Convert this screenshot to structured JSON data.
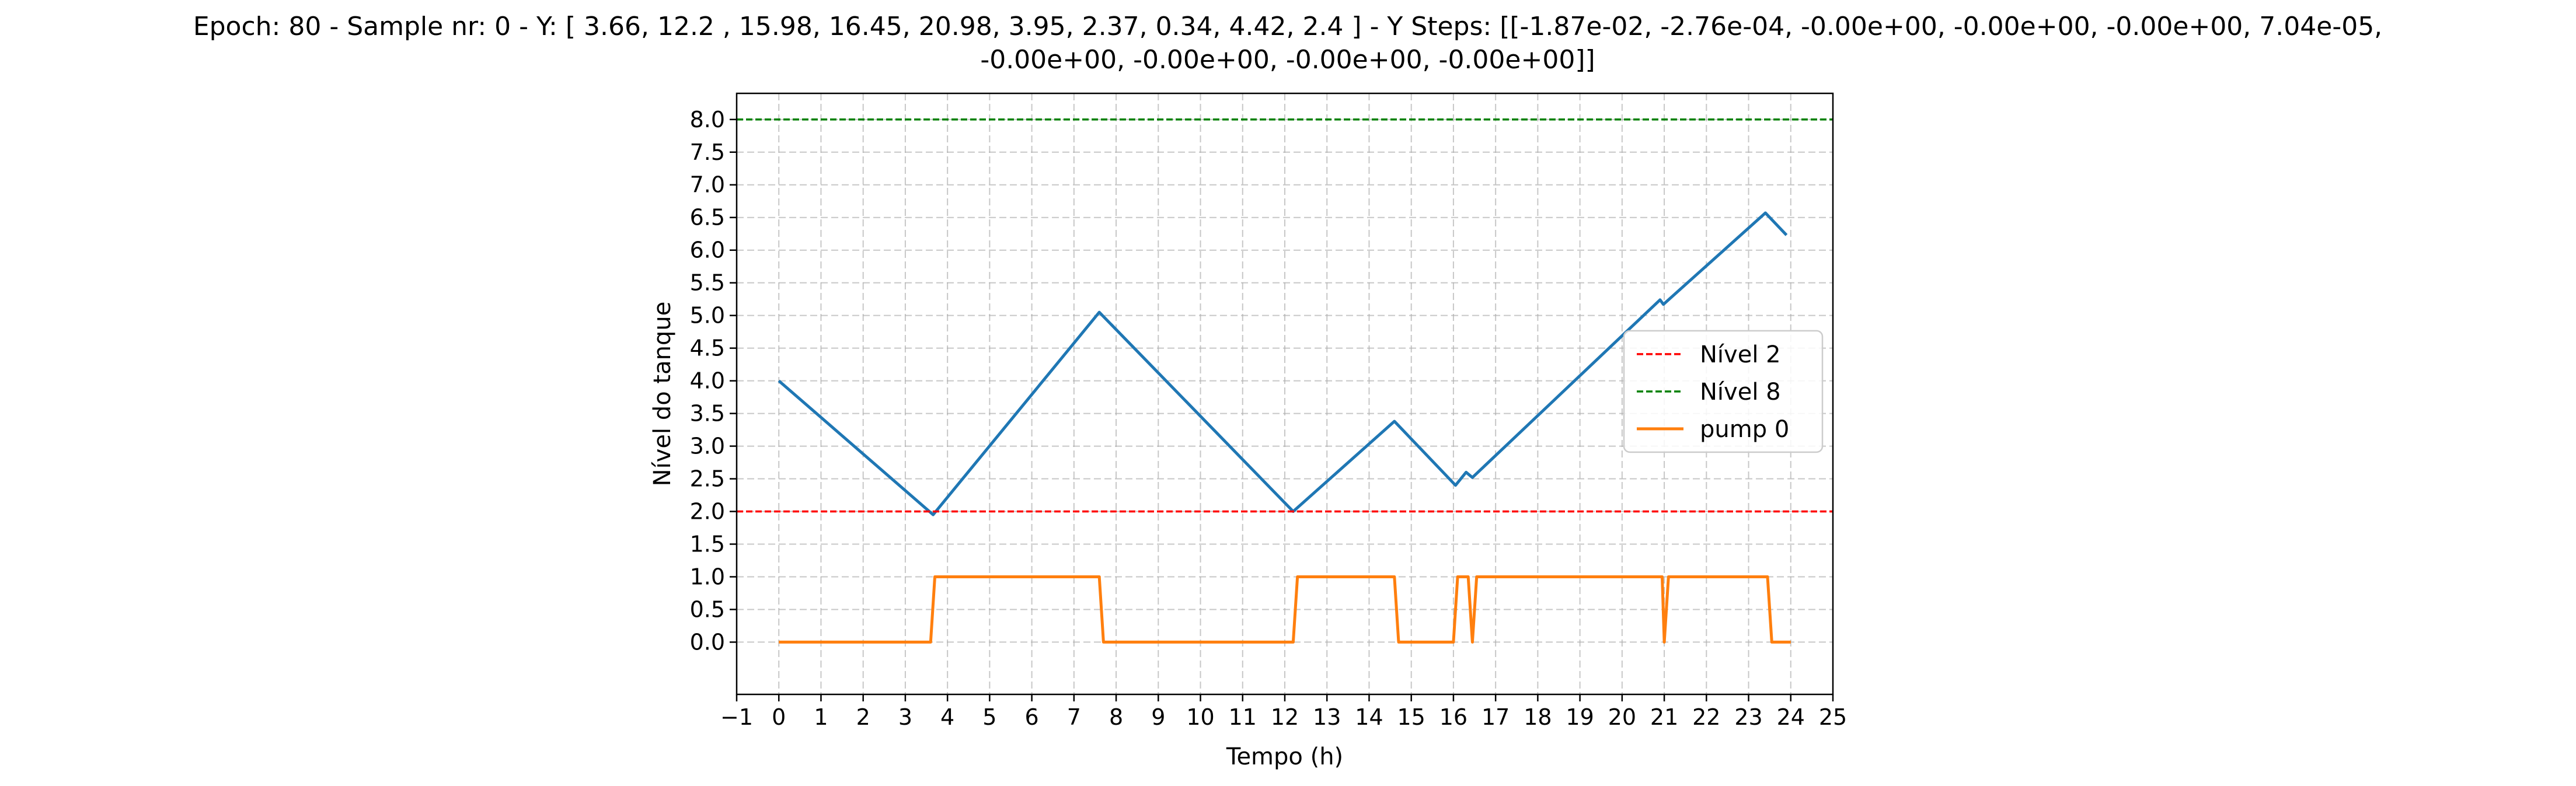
{
  "chart_data": {
    "type": "line",
    "title_lines": [
      "Epoch: 80 - Sample nr: 0 - Y: [ 3.66, 12.2 , 15.98, 16.45, 20.98,  3.95,  2.37,  0.34,  4.42,  2.4 ] - Y Steps: [[-1.87e-02, -2.76e-04, -0.00e+00, -0.00e+00, -0.00e+00,  7.04e-05,",
      "-0.00e+00, -0.00e+00, -0.00e+00, -0.00e+00]]"
    ],
    "xlabel": "Tempo (h)",
    "ylabel": "Nível do tanque",
    "xlim": [
      -1,
      25
    ],
    "ylim": [
      -0.8,
      8.4
    ],
    "xticks": [
      -1,
      0,
      1,
      2,
      3,
      4,
      5,
      6,
      7,
      8,
      9,
      10,
      11,
      12,
      13,
      14,
      15,
      16,
      17,
      18,
      19,
      20,
      21,
      22,
      23,
      24,
      25
    ],
    "xtick_labels": [
      "−1",
      "0",
      "1",
      "2",
      "3",
      "4",
      "5",
      "6",
      "7",
      "8",
      "9",
      "10",
      "11",
      "12",
      "13",
      "14",
      "15",
      "16",
      "17",
      "18",
      "19",
      "20",
      "21",
      "22",
      "23",
      "24",
      "25"
    ],
    "yticks": [
      0.0,
      0.5,
      1.0,
      1.5,
      2.0,
      2.5,
      3.0,
      3.5,
      4.0,
      4.5,
      5.0,
      5.5,
      6.0,
      6.5,
      7.0,
      7.5,
      8.0
    ],
    "ytick_labels": [
      "0.0",
      "0.5",
      "1.0",
      "1.5",
      "2.0",
      "2.5",
      "3.0",
      "3.5",
      "4.0",
      "4.5",
      "5.0",
      "5.5",
      "6.0",
      "6.5",
      "7.0",
      "7.5",
      "8.0"
    ],
    "grid": true,
    "legend_position": "center-right",
    "series": [
      {
        "kind": "line",
        "color": "#1f77b4",
        "dashed": false,
        "in_legend": false,
        "x": [
          0,
          3.66,
          7.6,
          12.2,
          14.6,
          16.05,
          16.3,
          16.45,
          20.9,
          20.98,
          23.4,
          23.9
        ],
        "y": [
          4.0,
          1.95,
          5.05,
          2.0,
          3.38,
          2.4,
          2.6,
          2.52,
          5.24,
          5.17,
          6.57,
          6.23
        ]
      },
      {
        "kind": "hline",
        "name": "Nível 2",
        "color": "#ff0000",
        "dashed": true,
        "in_legend": true,
        "y": 2
      },
      {
        "kind": "hline",
        "name": "Nível 8",
        "color": "#008000",
        "dashed": true,
        "in_legend": true,
        "y": 8
      },
      {
        "kind": "line",
        "name": "pump 0",
        "color": "#ff7f0e",
        "dashed": false,
        "in_legend": true,
        "x": [
          0,
          3.6,
          3.7,
          7.6,
          7.7,
          12.2,
          12.3,
          14.6,
          14.7,
          16.0,
          16.1,
          16.35,
          16.45,
          16.55,
          20.95,
          21.0,
          21.1,
          23.45,
          23.55,
          24.0
        ],
        "y": [
          0,
          0,
          1,
          1,
          0,
          0,
          1,
          1,
          0,
          0,
          1,
          1,
          0,
          1,
          1,
          0,
          1,
          1,
          0,
          0
        ]
      }
    ]
  }
}
